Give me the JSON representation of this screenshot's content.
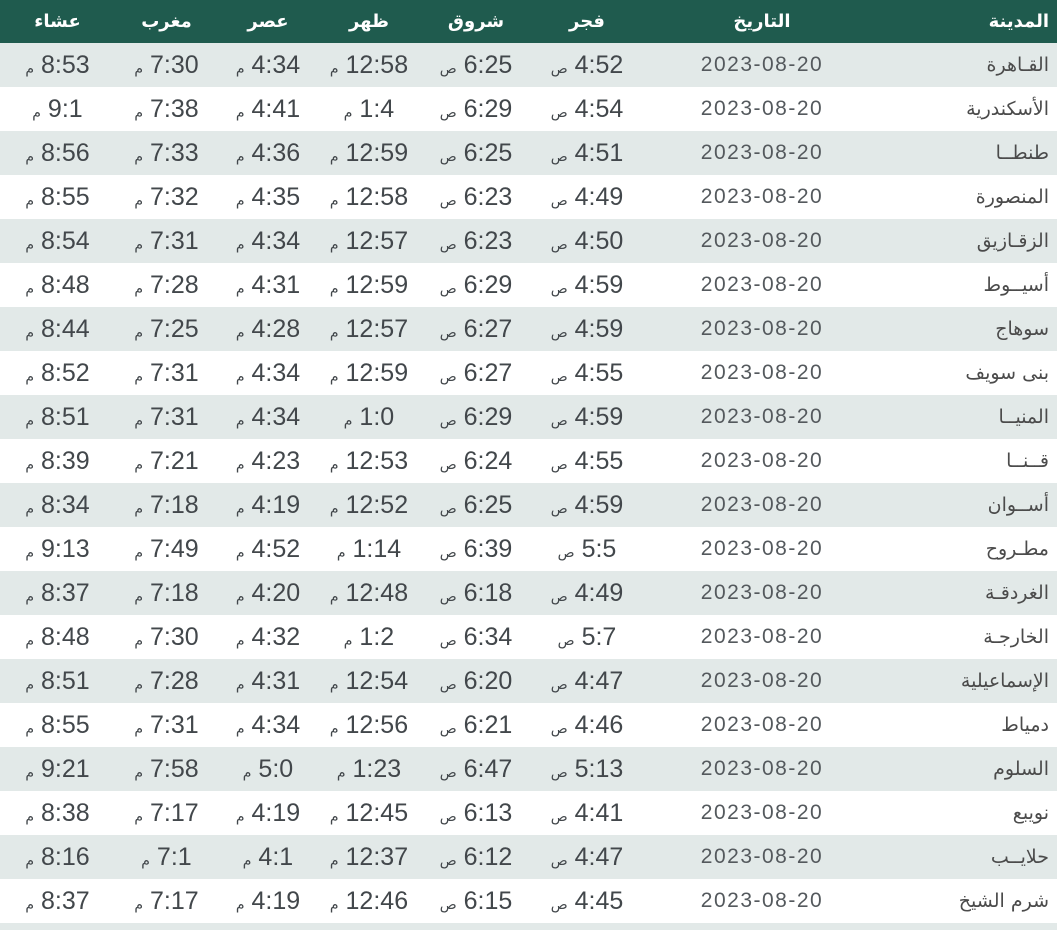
{
  "colors": {
    "header_bg": "#1f5b4e",
    "header_text": "#ffffff",
    "row_bg": "#ffffff",
    "row_alt_bg": "#e2e9e8",
    "time_text": "#42474b",
    "city_text": "#4b4b4b",
    "date_text": "#54595d"
  },
  "table": {
    "columns": [
      {
        "key": "city",
        "label": "المدينة"
      },
      {
        "key": "date",
        "label": "التاريخ"
      },
      {
        "key": "fajr",
        "label": "فجر"
      },
      {
        "key": "sunrise",
        "label": "شروق"
      },
      {
        "key": "dhuhr",
        "label": "ظهر"
      },
      {
        "key": "asr",
        "label": "عصر"
      },
      {
        "key": "maghrib",
        "label": "مغرب"
      },
      {
        "key": "isha",
        "label": "عشاء"
      }
    ],
    "rows": [
      {
        "city": "القـاهرة",
        "date": "2023-08-20",
        "fajr": "4:52 ص",
        "sunrise": "6:25 ص",
        "dhuhr": "12:58 م",
        "asr": "4:34 م",
        "maghrib": "7:30 م",
        "isha": "8:53 م"
      },
      {
        "city": "الأسكندرية",
        "date": "2023-08-20",
        "fajr": "4:54 ص",
        "sunrise": "6:29 ص",
        "dhuhr": "1:4 م",
        "asr": "4:41 م",
        "maghrib": "7:38 م",
        "isha": "9:1 م"
      },
      {
        "city": "طنطــا",
        "date": "2023-08-20",
        "fajr": "4:51 ص",
        "sunrise": "6:25 ص",
        "dhuhr": "12:59 م",
        "asr": "4:36 م",
        "maghrib": "7:33 م",
        "isha": "8:56 م"
      },
      {
        "city": "المنصورة",
        "date": "2023-08-20",
        "fajr": "4:49 ص",
        "sunrise": "6:23 ص",
        "dhuhr": "12:58 م",
        "asr": "4:35 م",
        "maghrib": "7:32 م",
        "isha": "8:55 م"
      },
      {
        "city": "الزقـازيق",
        "date": "2023-08-20",
        "fajr": "4:50 ص",
        "sunrise": "6:23 ص",
        "dhuhr": "12:57 م",
        "asr": "4:34 م",
        "maghrib": "7:31 م",
        "isha": "8:54 م"
      },
      {
        "city": "أسيــوط",
        "date": "2023-08-20",
        "fajr": "4:59 ص",
        "sunrise": "6:29 ص",
        "dhuhr": "12:59 م",
        "asr": "4:31 م",
        "maghrib": "7:28 م",
        "isha": "8:48 م"
      },
      {
        "city": "سوهاج",
        "date": "2023-08-20",
        "fajr": "4:59 ص",
        "sunrise": "6:27 ص",
        "dhuhr": "12:57 م",
        "asr": "4:28 م",
        "maghrib": "7:25 م",
        "isha": "8:44 م"
      },
      {
        "city": "بنى سويف",
        "date": "2023-08-20",
        "fajr": "4:55 ص",
        "sunrise": "6:27 ص",
        "dhuhr": "12:59 م",
        "asr": "4:34 م",
        "maghrib": "7:31 م",
        "isha": "8:52 م"
      },
      {
        "city": "المنيــا",
        "date": "2023-08-20",
        "fajr": "4:59 ص",
        "sunrise": "6:29 ص",
        "dhuhr": "1:0 م",
        "asr": "4:34 م",
        "maghrib": "7:31 م",
        "isha": "8:51 م"
      },
      {
        "city": "قــنــا",
        "date": "2023-08-20",
        "fajr": "4:55 ص",
        "sunrise": "6:24 ص",
        "dhuhr": "12:53 م",
        "asr": "4:23 م",
        "maghrib": "7:21 م",
        "isha": "8:39 م"
      },
      {
        "city": "أســوان",
        "date": "2023-08-20",
        "fajr": "4:59 ص",
        "sunrise": "6:25 ص",
        "dhuhr": "12:52 م",
        "asr": "4:19 م",
        "maghrib": "7:18 م",
        "isha": "8:34 م"
      },
      {
        "city": "مطـروح",
        "date": "2023-08-20",
        "fajr": "5:5 ص",
        "sunrise": "6:39 ص",
        "dhuhr": "1:14 م",
        "asr": "4:52 م",
        "maghrib": "7:49 م",
        "isha": "9:13 م"
      },
      {
        "city": "الغردقـة",
        "date": "2023-08-20",
        "fajr": "4:49 ص",
        "sunrise": "6:18 ص",
        "dhuhr": "12:48 م",
        "asr": "4:20 م",
        "maghrib": "7:18 م",
        "isha": "8:37 م"
      },
      {
        "city": "الخارجـة",
        "date": "2023-08-20",
        "fajr": "5:7 ص",
        "sunrise": "6:34 ص",
        "dhuhr": "1:2 م",
        "asr": "4:32 م",
        "maghrib": "7:30 م",
        "isha": "8:48 م"
      },
      {
        "city": "الإسماعيلية",
        "date": "2023-08-20",
        "fajr": "4:47 ص",
        "sunrise": "6:20 ص",
        "dhuhr": "12:54 م",
        "asr": "4:31 م",
        "maghrib": "7:28 م",
        "isha": "8:51 م"
      },
      {
        "city": "دمياط",
        "date": "2023-08-20",
        "fajr": "4:46 ص",
        "sunrise": "6:21 ص",
        "dhuhr": "12:56 م",
        "asr": "4:34 م",
        "maghrib": "7:31 م",
        "isha": "8:55 م"
      },
      {
        "city": "السلوم",
        "date": "2023-08-20",
        "fajr": "5:13 ص",
        "sunrise": "6:47 ص",
        "dhuhr": "1:23 م",
        "asr": "5:0 م",
        "maghrib": "7:58 م",
        "isha": "9:21 م"
      },
      {
        "city": "نويبع",
        "date": "2023-08-20",
        "fajr": "4:41 ص",
        "sunrise": "6:13 ص",
        "dhuhr": "12:45 م",
        "asr": "4:19 م",
        "maghrib": "7:17 م",
        "isha": "8:38 م"
      },
      {
        "city": "حلايــب",
        "date": "2023-08-20",
        "fajr": "4:47 ص",
        "sunrise": "6:12 ص",
        "dhuhr": "12:37 م",
        "asr": "4:1 م",
        "maghrib": "7:1 م",
        "isha": "8:16 م"
      },
      {
        "city": "شرم الشيخ",
        "date": "2023-08-20",
        "fajr": "4:45 ص",
        "sunrise": "6:15 ص",
        "dhuhr": "12:46 م",
        "asr": "4:19 م",
        "maghrib": "7:17 م",
        "isha": "8:37 م"
      }
    ]
  }
}
